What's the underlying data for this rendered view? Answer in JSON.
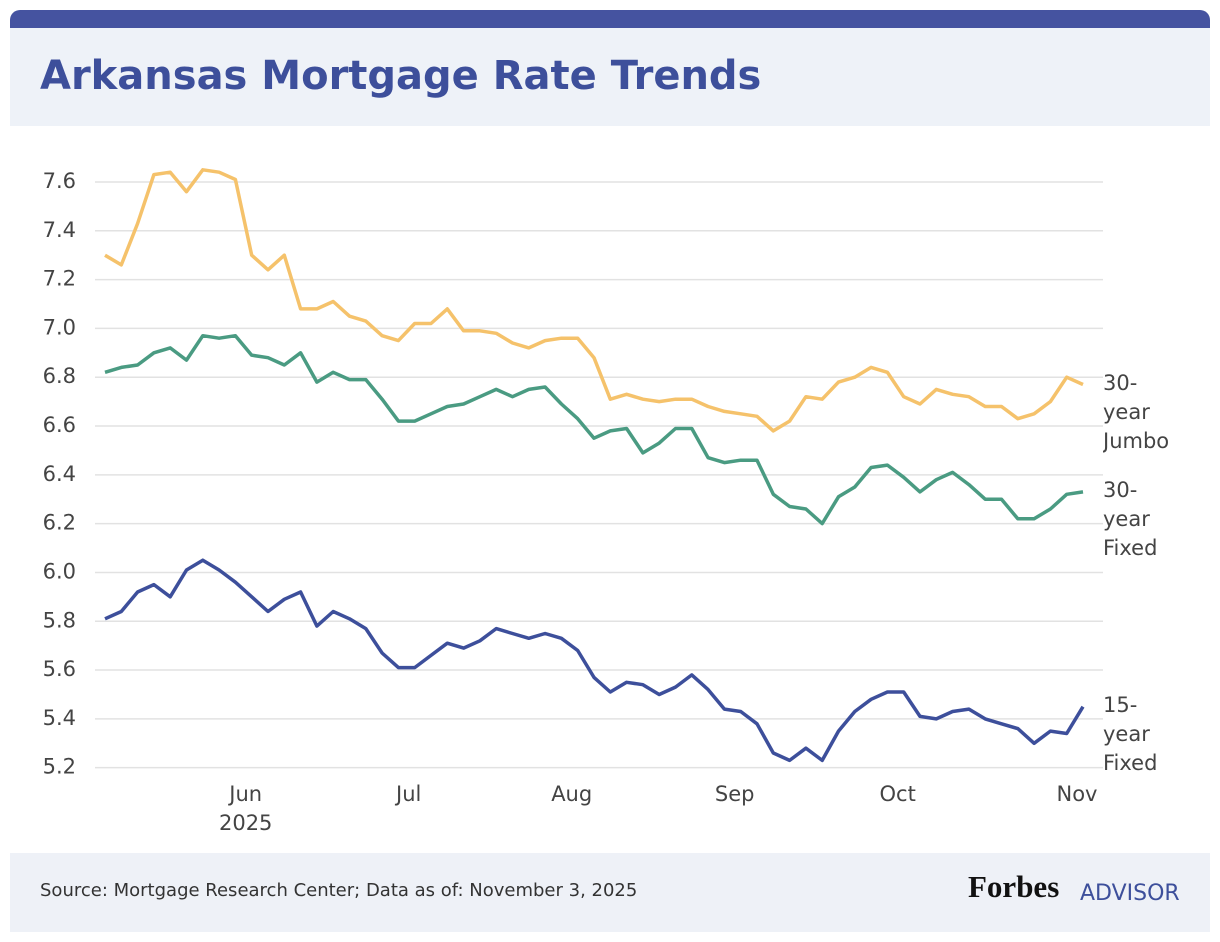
{
  "header": {
    "title": "Arkansas Mortgage Rate Trends"
  },
  "chart_data": {
    "type": "line",
    "categories": [
      null,
      null,
      null,
      null,
      null,
      null,
      null,
      null,
      null,
      "Jun",
      null,
      null,
      null,
      null,
      null,
      null,
      null,
      null,
      null,
      "Jul",
      null,
      null,
      null,
      null,
      null,
      null,
      null,
      null,
      null,
      "Aug",
      null,
      null,
      null,
      null,
      null,
      null,
      null,
      null,
      null,
      "Sep",
      null,
      null,
      null,
      null,
      null,
      null,
      null,
      null,
      null,
      "Oct",
      null,
      null,
      null,
      null,
      null,
      null,
      null,
      null,
      null,
      null,
      "Nov"
    ],
    "year_label": "2025",
    "series": [
      {
        "name": "30-year Jumbo",
        "color": "#f5c26b",
        "values": [
          7.3,
          7.26,
          7.43,
          7.63,
          7.64,
          7.56,
          7.65,
          7.64,
          7.61,
          7.3,
          7.24,
          7.3,
          7.08,
          7.08,
          7.11,
          7.05,
          7.03,
          6.97,
          6.95,
          7.02,
          7.02,
          7.08,
          6.99,
          6.99,
          6.98,
          6.94,
          6.92,
          6.95,
          6.96,
          6.96,
          6.88,
          6.71,
          6.73,
          6.71,
          6.7,
          6.71,
          6.71,
          6.68,
          6.66,
          6.65,
          6.64,
          6.58,
          6.62,
          6.72,
          6.71,
          6.78,
          6.8,
          6.84,
          6.82,
          6.72,
          6.69,
          6.75,
          6.73,
          6.72,
          6.68,
          6.68,
          6.63,
          6.65,
          6.7,
          6.8,
          6.77
        ]
      },
      {
        "name": "30-year Fixed",
        "color": "#4a9b82",
        "values": [
          6.82,
          6.84,
          6.85,
          6.9,
          6.92,
          6.87,
          6.97,
          6.96,
          6.97,
          6.89,
          6.88,
          6.85,
          6.9,
          6.78,
          6.82,
          6.79,
          6.79,
          6.71,
          6.62,
          6.62,
          6.65,
          6.68,
          6.69,
          6.72,
          6.75,
          6.72,
          6.75,
          6.76,
          6.69,
          6.63,
          6.55,
          6.58,
          6.59,
          6.49,
          6.53,
          6.59,
          6.59,
          6.47,
          6.45,
          6.46,
          6.46,
          6.32,
          6.27,
          6.26,
          6.2,
          6.31,
          6.35,
          6.43,
          6.44,
          6.39,
          6.33,
          6.38,
          6.41,
          6.36,
          6.3,
          6.3,
          6.22,
          6.22,
          6.26,
          6.32,
          6.33
        ]
      },
      {
        "name": "15-year Fixed",
        "color": "#3d4f9b",
        "values": [
          5.81,
          5.84,
          5.92,
          5.95,
          5.9,
          6.01,
          6.05,
          6.01,
          5.96,
          5.9,
          5.84,
          5.89,
          5.92,
          5.78,
          5.84,
          5.81,
          5.77,
          5.67,
          5.61,
          5.61,
          5.66,
          5.71,
          5.69,
          5.72,
          5.77,
          5.75,
          5.73,
          5.75,
          5.73,
          5.68,
          5.57,
          5.51,
          5.55,
          5.54,
          5.5,
          5.53,
          5.58,
          5.52,
          5.44,
          5.43,
          5.38,
          5.26,
          5.23,
          5.28,
          5.23,
          5.35,
          5.43,
          5.48,
          5.51,
          5.51,
          5.41,
          5.4,
          5.43,
          5.44,
          5.4,
          5.38,
          5.36,
          5.3,
          5.35,
          5.34,
          5.45
        ]
      }
    ],
    "ylim": [
      5.17,
      7.69
    ],
    "yticks": [
      5.2,
      5.4,
      5.6,
      5.8,
      {
        "value": 6,
        "label": "6.0"
      },
      6.2,
      6.4,
      6.6,
      6.8,
      {
        "value": 7,
        "label": "7.0"
      },
      7.2,
      7.4,
      7.6
    ],
    "grid": true
  },
  "footer": {
    "source": "Source: Mortgage Research Center; Data as of: November 3, 2025",
    "logo_brand": "Forbes",
    "logo_suffix": "ADVISOR"
  }
}
